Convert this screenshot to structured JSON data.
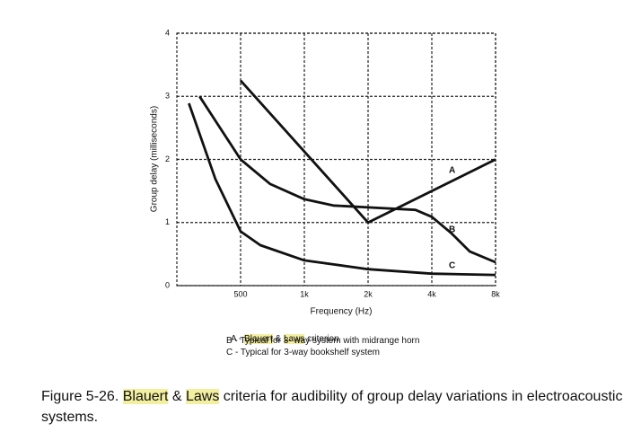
{
  "chart_data": {
    "type": "line",
    "xlabel": "Frequency (Hz)",
    "ylabel": "Group delay (milliseconds)",
    "xscale": "log",
    "xlim": [
      250,
      8000
    ],
    "ylim": [
      0,
      4
    ],
    "xticks": [
      500,
      {
        "value": 1000,
        "label": "1k"
      },
      {
        "value": 2000,
        "label": "2k"
      },
      {
        "value": 4000,
        "label": "4k"
      },
      {
        "value": 8000,
        "label": "8k"
      }
    ],
    "yticks": [
      0,
      1,
      2,
      3,
      4
    ],
    "grid": true,
    "series": [
      {
        "name": "A",
        "color": "#111111",
        "x": [
          500,
          2000,
          8000
        ],
        "values": [
          3.25,
          1.0,
          2.0
        ]
      },
      {
        "name": "B",
        "color": "#111111",
        "x": [
          320,
          500,
          690,
          1000,
          1370,
          2000,
          3350,
          4000,
          4950,
          6050,
          8000
        ],
        "values": [
          3.0,
          2.0,
          1.61,
          1.37,
          1.27,
          1.24,
          1.2,
          1.09,
          0.83,
          0.54,
          0.37
        ]
      },
      {
        "name": "C",
        "color": "#111111",
        "x": [
          285,
          380,
          500,
          620,
          1000,
          2000,
          4000,
          8000
        ],
        "values": [
          2.89,
          1.69,
          0.86,
          0.64,
          0.4,
          0.26,
          0.19,
          0.17
        ]
      }
    ],
    "notes": [
      [
        "A - ",
        "Blauert",
        " & ",
        "Laws",
        " criterion"
      ],
      [
        "B - Typical for 3- way system with midrange horn"
      ],
      [
        "C - Typical for 3-way bookshelf system"
      ]
    ],
    "caption": [
      "Figure 5-26. ",
      "Blauert",
      " & ",
      "Laws",
      " criteria for audibility of group delay variations in electroacoustic systems."
    ]
  }
}
